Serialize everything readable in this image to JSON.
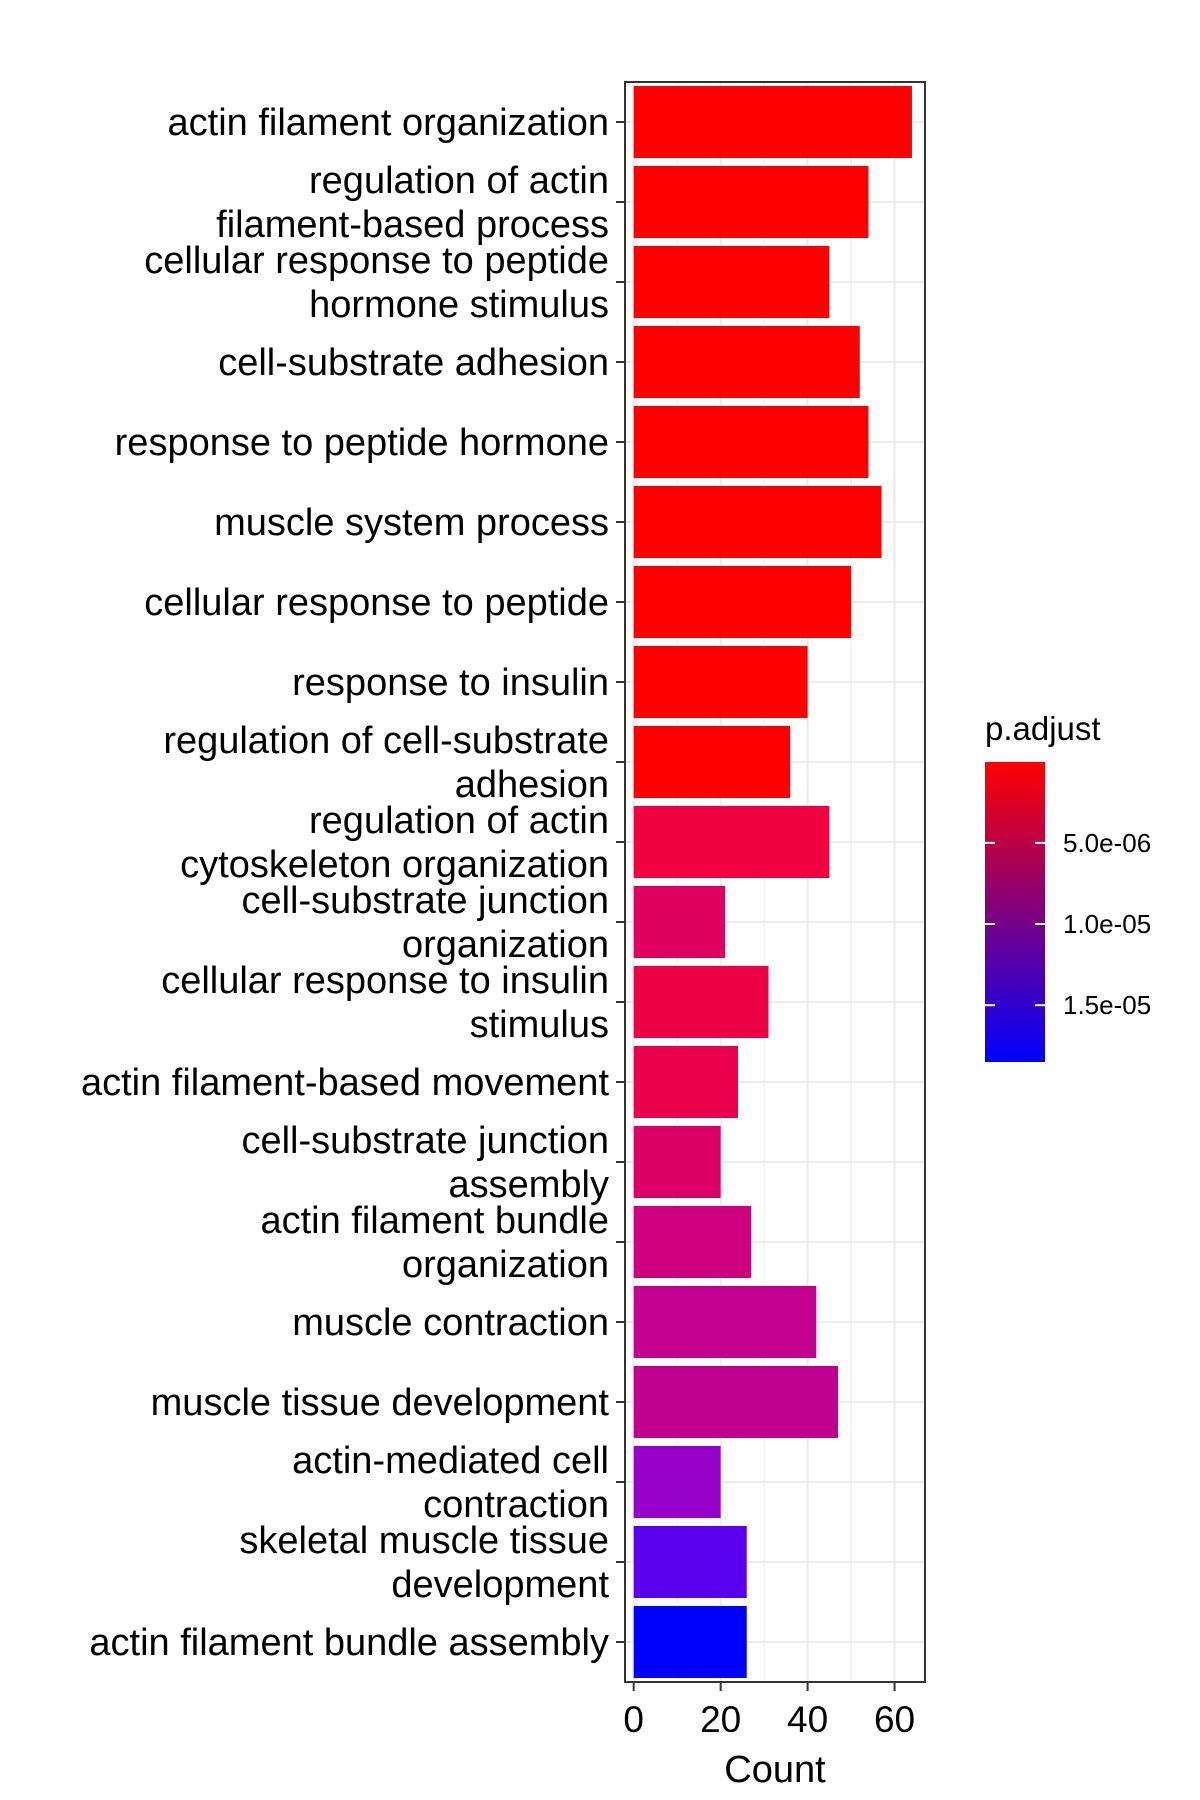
{
  "chart_data": {
    "type": "bar",
    "orientation": "horizontal",
    "xlabel": "Count",
    "ylabel": "",
    "xlim": [
      -2,
      67
    ],
    "x_ticks": [
      0,
      20,
      40,
      60
    ],
    "grid": true,
    "categories": [
      [
        "actin filament organization"
      ],
      [
        "regulation of actin",
        "filament-based process"
      ],
      [
        "cellular response to peptide",
        "hormone stimulus"
      ],
      [
        "cell-substrate adhesion"
      ],
      [
        "response to peptide hormone"
      ],
      [
        "muscle system process"
      ],
      [
        "cellular response to peptide"
      ],
      [
        "response to insulin"
      ],
      [
        "regulation of cell-substrate",
        "adhesion"
      ],
      [
        "regulation of actin",
        "cytoskeleton organization"
      ],
      [
        "cell-substrate junction",
        "organization"
      ],
      [
        "cellular response to insulin",
        "stimulus"
      ],
      [
        "actin filament-based movement"
      ],
      [
        "cell-substrate junction",
        "assembly"
      ],
      [
        "actin filament bundle",
        "organization"
      ],
      [
        "muscle contraction"
      ],
      [
        "muscle tissue development"
      ],
      [
        "actin-mediated cell",
        "contraction"
      ],
      [
        "skeletal muscle tissue",
        "development"
      ],
      [
        "actin filament bundle assembly"
      ]
    ],
    "values": [
      64,
      54,
      45,
      52,
      54,
      57,
      50,
      40,
      36,
      45,
      21,
      31,
      24,
      20,
      27,
      42,
      47,
      20,
      26,
      26
    ],
    "colors": [
      "#FF0000",
      "#FF0000",
      "#FF0000",
      "#FF0000",
      "#FF0000",
      "#FF0000",
      "#FF0000",
      "#FF0000",
      "#FF0000",
      "#F0003F",
      "#E00060",
      "#EE0044",
      "#EA004D",
      "#DC0066",
      "#CE0080",
      "#C30090",
      "#C0008F",
      "#9600C8",
      "#5A00EE",
      "#0000FF"
    ],
    "legend": {
      "title": "p.adjust",
      "position": "right",
      "gradient": [
        "#0000FF",
        "#FF0000"
      ],
      "ticks": [
        "5.0e-06",
        "1.0e-05",
        "1.5e-05"
      ],
      "tick_values": [
        5e-06,
        1e-05,
        1.5e-05
      ],
      "range": [
        2e-08,
        1.85e-05
      ]
    }
  }
}
